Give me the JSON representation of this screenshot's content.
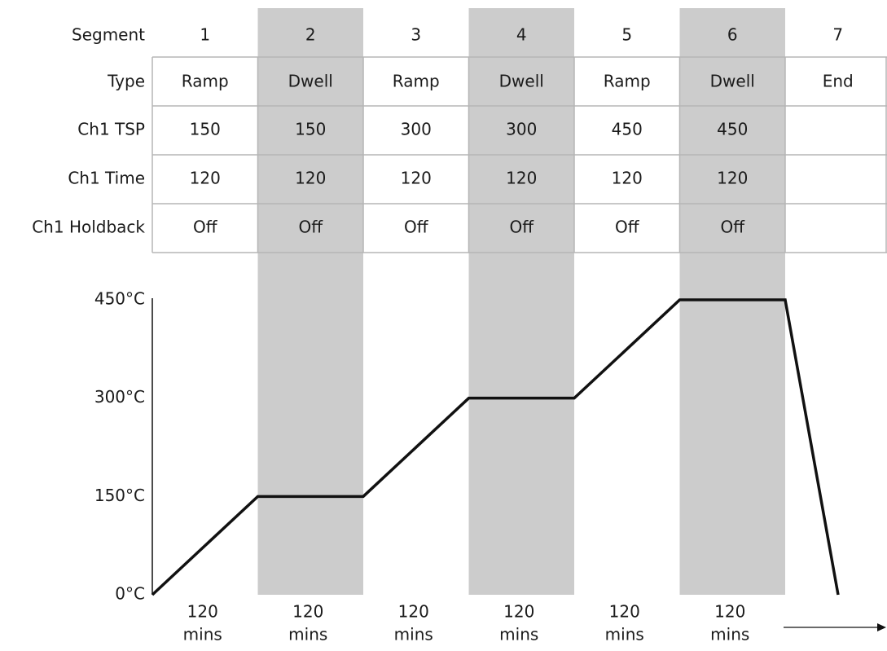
{
  "table": {
    "row_labels": [
      "Segment",
      "Type",
      "Ch1 TSP",
      "Ch1 Time",
      "Ch1 Holdback"
    ],
    "segments": [
      "1",
      "2",
      "3",
      "4",
      "5",
      "6",
      "7"
    ],
    "types": [
      "Ramp",
      "Dwell",
      "Ramp",
      "Dwell",
      "Ramp",
      "Dwell",
      "End"
    ],
    "tsp": [
      "150",
      "150",
      "300",
      "300",
      "450",
      "450",
      ""
    ],
    "time": [
      "120",
      "120",
      "120",
      "120",
      "120",
      "120",
      ""
    ],
    "holdback": [
      "Off",
      "Off",
      "Off",
      "Off",
      "Off",
      "Off",
      ""
    ],
    "shaded_segments": [
      2,
      4,
      6
    ]
  },
  "chart_data": {
    "type": "line",
    "y_tick_labels": [
      "0°C",
      "150°C",
      "300°C",
      "450°C"
    ],
    "ylim": [
      0,
      450
    ],
    "series": [
      {
        "segment_ends_temperature": [
          0,
          150,
          150,
          300,
          300,
          450,
          450,
          0
        ]
      }
    ],
    "x_tick_labels": [
      [
        "120",
        "mins"
      ],
      [
        "120",
        "mins"
      ],
      [
        "120",
        "mins"
      ],
      [
        "120",
        "mins"
      ],
      [
        "120",
        "mins"
      ],
      [
        "120",
        "mins"
      ]
    ]
  },
  "colors": {
    "shade": "#cccccc",
    "grid": "#b5b5b5",
    "line": "#111111",
    "text": "#1a1a1a"
  }
}
